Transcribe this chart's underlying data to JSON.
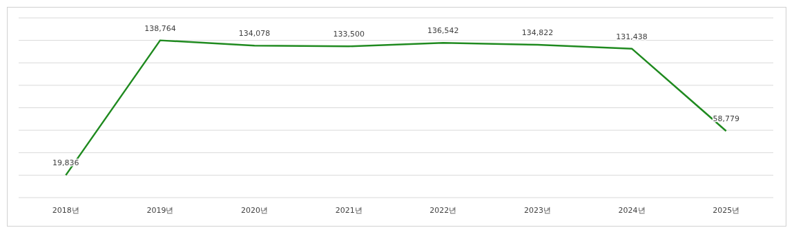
{
  "chart_data": {
    "type": "line",
    "categories": [
      "2018년",
      "2019년",
      "2020년",
      "2021년",
      "2022년",
      "2023년",
      "2024년",
      "2025년"
    ],
    "series": [
      {
        "color": "#1f8a1f",
        "values": [
          19836,
          138764,
          134078,
          133500,
          136542,
          134822,
          131438,
          58779
        ],
        "value_labels": [
          "19,836",
          "138,764",
          "134,078",
          "133,500",
          "136,542",
          "134,822",
          "131,438",
          "58,779"
        ]
      }
    ],
    "grid": "y",
    "tick_labels": "x",
    "marker": "none",
    "line_style": "solid"
  }
}
